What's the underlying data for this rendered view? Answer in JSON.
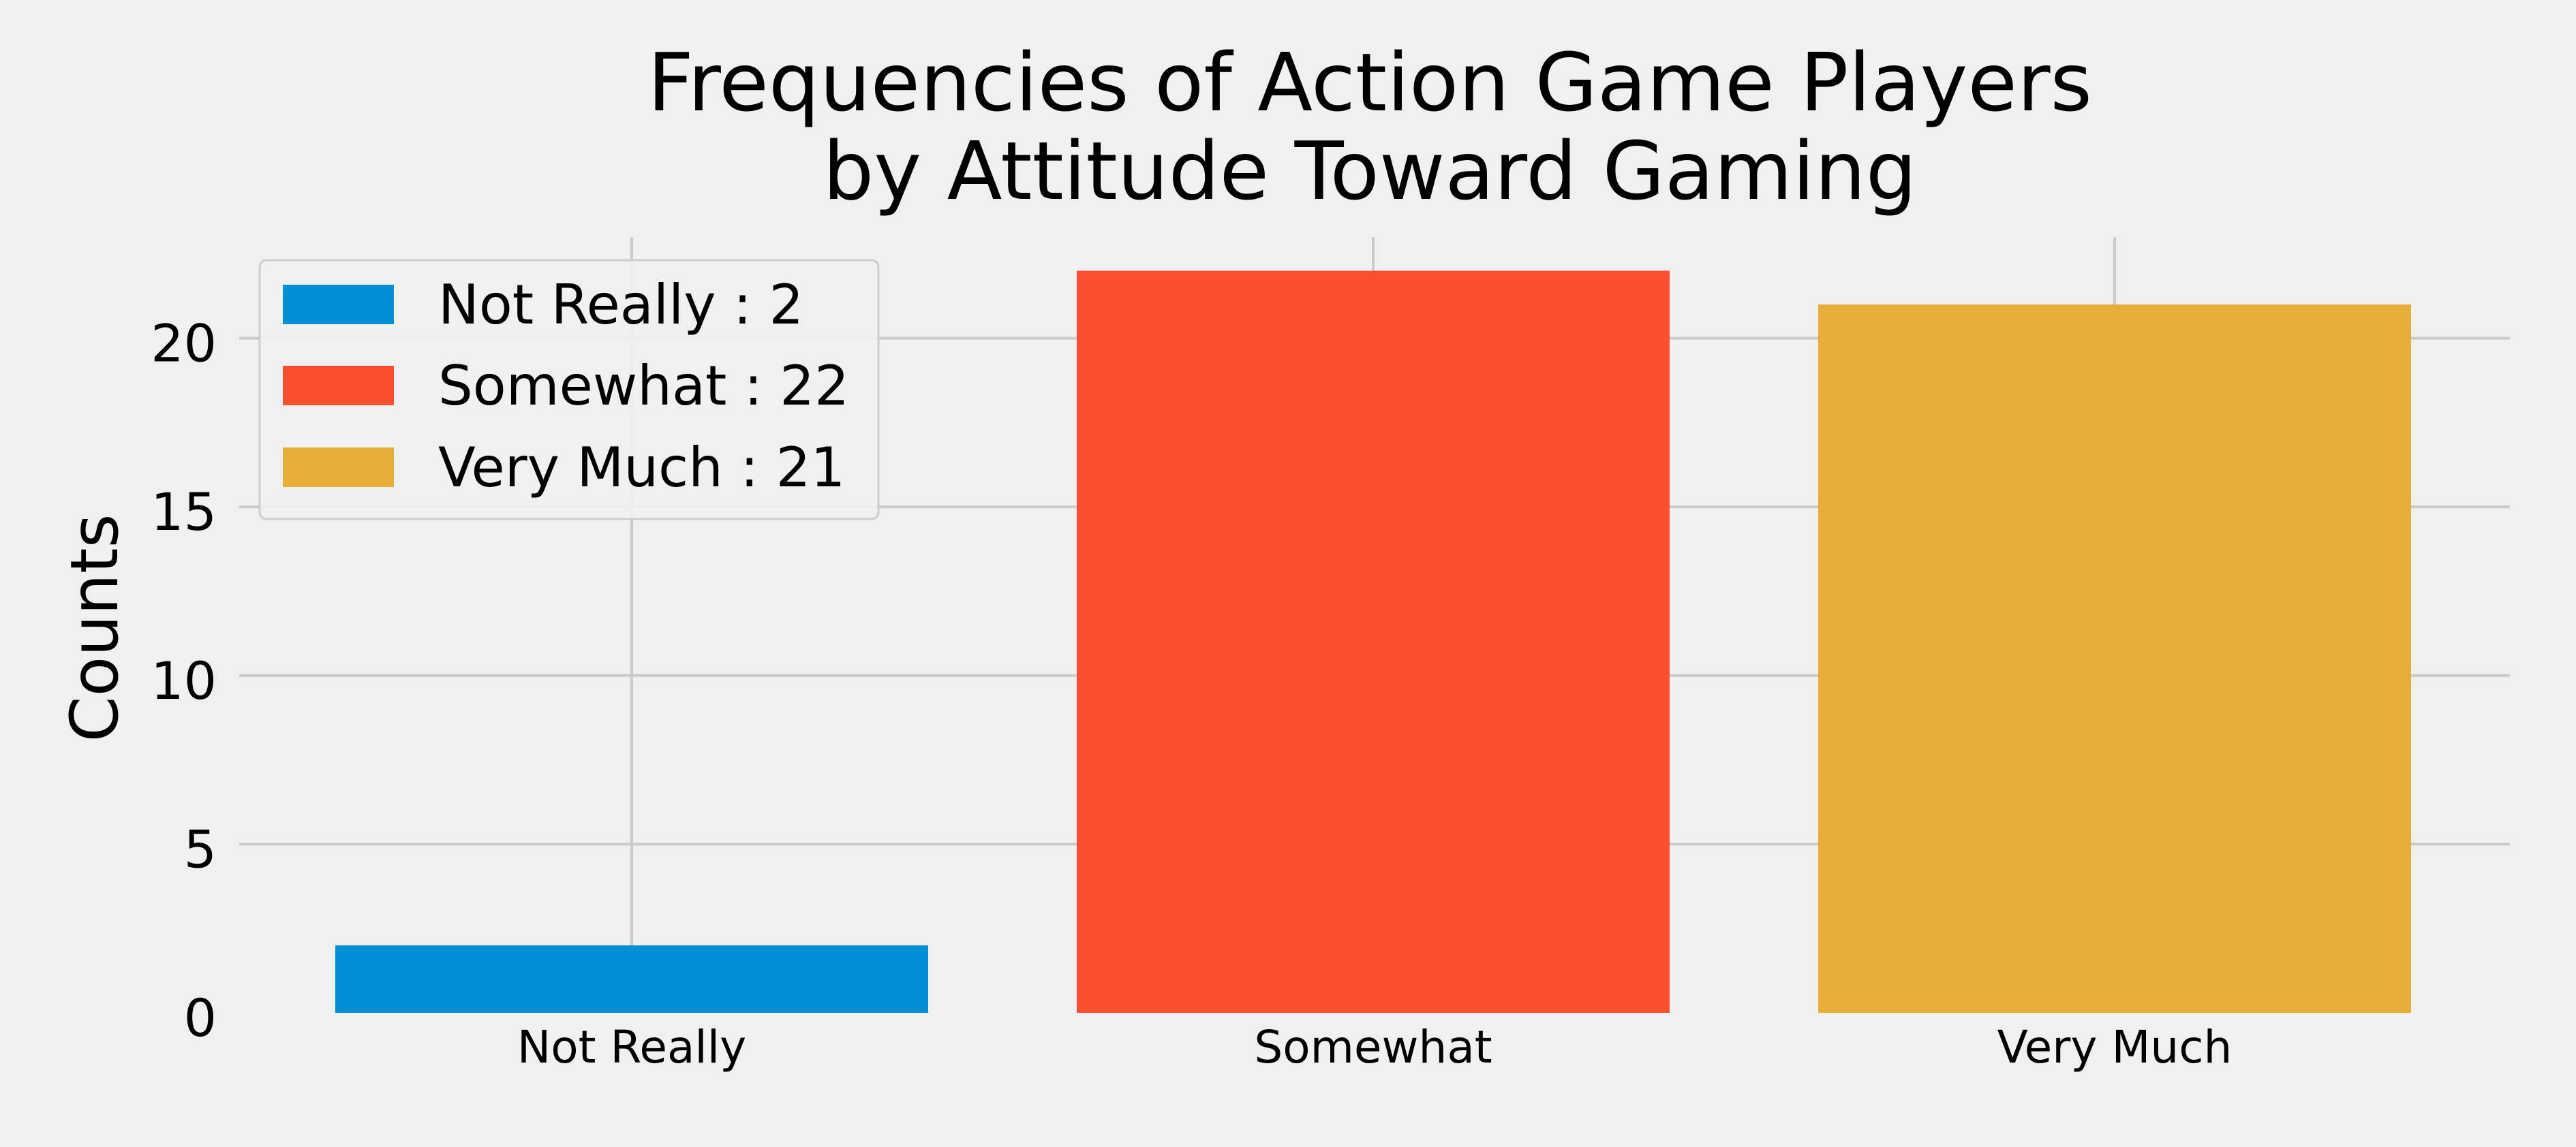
{
  "chart_data": {
    "type": "bar",
    "title_lines": [
      "Frequencies of Action Game Players",
      "by Attitude Toward Gaming"
    ],
    "xlabel": "",
    "ylabel": "Counts",
    "categories": [
      "Not Really",
      "Somewhat",
      "Very Much"
    ],
    "values": [
      2,
      22,
      21
    ],
    "colors": [
      "#008fd5",
      "#fc4f30",
      "#e5ae38"
    ],
    "legend_labels": [
      "Not Really : 2",
      "Somewhat : 22",
      "Very Much : 21"
    ],
    "legend_position": "top-left",
    "ylim": [
      0,
      23
    ],
    "yticks": [
      0,
      5,
      10,
      15,
      20
    ],
    "grid": true,
    "background": "#f0f0f0",
    "grid_color": "#cbcbcb"
  }
}
